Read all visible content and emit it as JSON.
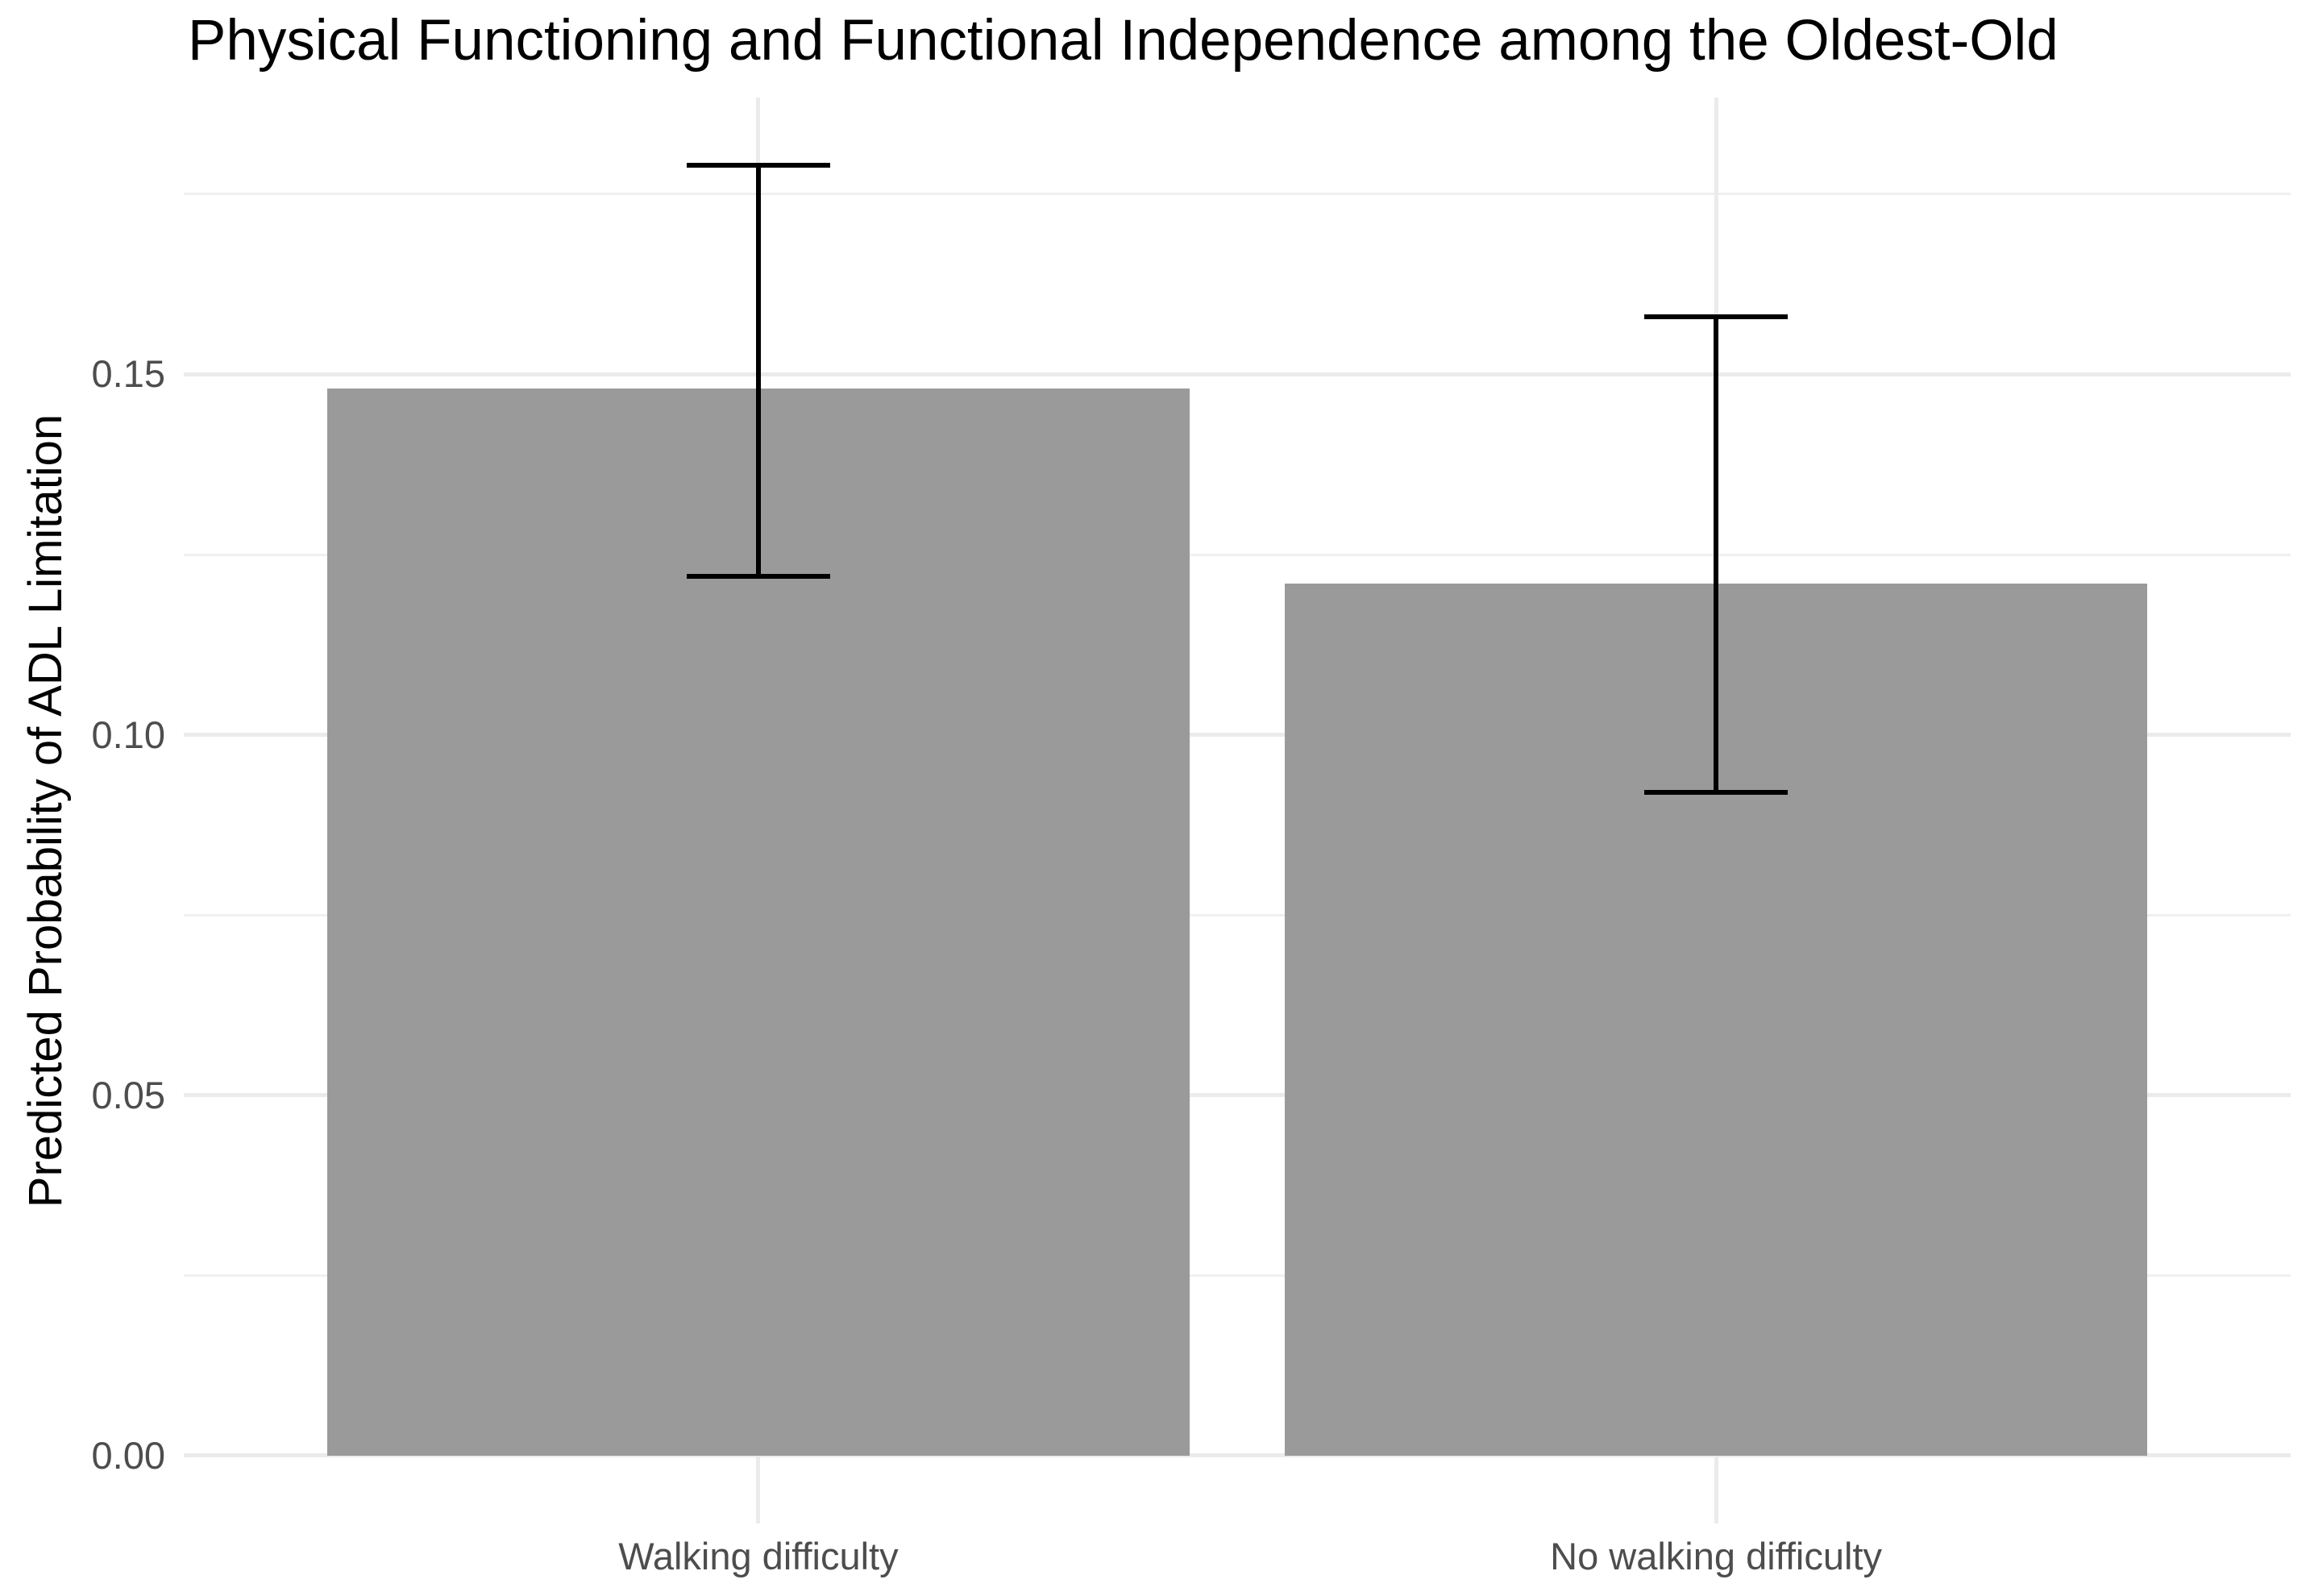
{
  "chart_data": {
    "type": "bar",
    "title": "Physical Functioning and Functional Independence among the Oldest-Old",
    "xlabel": "",
    "ylabel": "Predicted Probability of ADL Limitation",
    "categories": [
      "Walking difficulty",
      "No walking difficulty"
    ],
    "values": [
      0.148,
      0.121
    ],
    "error_bars": {
      "low": [
        0.122,
        0.092
      ],
      "high": [
        0.179,
        0.158
      ]
    },
    "yticks": [
      0,
      0.05,
      0.1,
      0.15
    ],
    "ytick_labels": [
      "0.00",
      "0.05",
      "0.10",
      "0.15"
    ],
    "minor_yticks": [
      0.025,
      0.075,
      0.125,
      0.175
    ],
    "ylim": [
      -0.0094,
      0.1884
    ],
    "grid": true,
    "legend": "none",
    "colors": {
      "bar_fill": "#9a9a9a",
      "error_bar": "#000000",
      "grid_major": "#ebebeb",
      "grid_minor": "#f0f0f0",
      "axis_text": "#4d4d4d",
      "title_text": "#000000",
      "background": "#ffffff"
    }
  }
}
